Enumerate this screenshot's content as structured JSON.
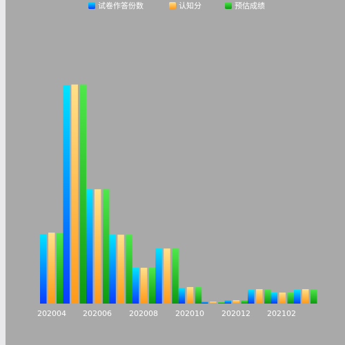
{
  "chart_data": {
    "type": "bar",
    "categories": [
      "202004",
      "202005",
      "202006",
      "202007",
      "202008",
      "202009",
      "202010",
      "202011",
      "202012",
      "202101",
      "202102",
      "202103"
    ],
    "tick_labels": [
      "202004",
      "202006",
      "202008",
      "202010",
      "202012",
      "202102"
    ],
    "series": [
      {
        "name": "试卷作答份数",
        "values": [
          101,
          317,
          166,
          100,
          52,
          80,
          23,
          3,
          5,
          20,
          16,
          20
        ]
      },
      {
        "name": "认知分",
        "values": [
          103,
          318,
          166,
          100,
          52,
          80,
          24,
          3,
          5,
          21,
          16,
          21
        ]
      },
      {
        "name": "预估成绩",
        "values": [
          103,
          318,
          166,
          100,
          52,
          80,
          24,
          2,
          5,
          21,
          16,
          21
        ]
      }
    ],
    "colors": {
      "series_0_top": "#00e5ff",
      "series_0_bottom": "#0a3cff",
      "series_1_top": "#ffe08a",
      "series_1_bottom": "#ff9a1a",
      "series_2_top": "#4ee84a",
      "series_2_bottom": "#0d9a10",
      "plot_background": "#a9a9a9",
      "outer_background": "#e9e9ec"
    },
    "ylim": [
      0,
      340
    ],
    "grid": false,
    "legend_position": "top-center"
  }
}
